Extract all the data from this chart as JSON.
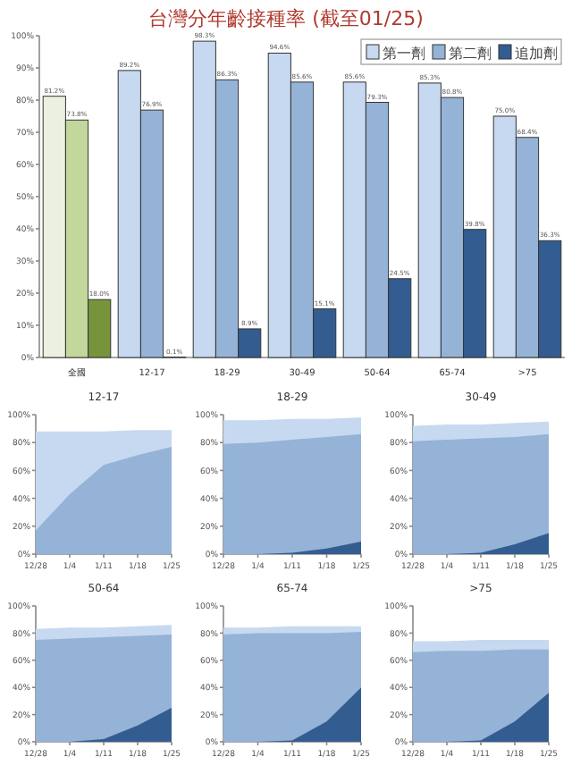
{
  "chart_data": [
    {
      "type": "bar",
      "title": "台灣分年齡接種率 (截至01/25)",
      "categories": [
        "全國",
        "12-17",
        "18-29",
        "30-49",
        "50-64",
        "65-74",
        ">75"
      ],
      "legend": "top right",
      "ylim": [
        0,
        100
      ],
      "yticks": [
        {
          "value": 0,
          "label": "0%"
        },
        {
          "value": 10,
          "label": "10%"
        },
        {
          "value": 20,
          "label": "20%"
        },
        {
          "value": 30,
          "label": "30%"
        },
        {
          "value": 40,
          "label": "40%"
        },
        {
          "value": 50,
          "label": "50%"
        },
        {
          "value": 60,
          "label": "60%"
        },
        {
          "value": 70,
          "label": "70%"
        },
        {
          "value": 80,
          "label": "80%"
        },
        {
          "value": 90,
          "label": "90%"
        },
        {
          "value": 100,
          "label": "100%"
        }
      ],
      "series": [
        {
          "name": "第一劑",
          "color": "#c6d9f0",
          "colors": [
            "#ebf1de",
            "#c6d9f0",
            "#c6d9f0",
            "#c6d9f0",
            "#c6d9f0",
            "#c6d9f0",
            "#c6d9f0"
          ],
          "values": [
            81.2,
            89.2,
            98.3,
            94.6,
            85.6,
            85.3,
            75.0
          ],
          "value_labels": [
            "81.2%",
            "89.2%",
            "98.3%",
            "94.6%",
            "85.6%",
            "85.3%",
            "75.0%"
          ]
        },
        {
          "name": "第二劑",
          "color": "#95b3d7",
          "colors": [
            "#c3d69b",
            "#95b3d7",
            "#95b3d7",
            "#95b3d7",
            "#95b3d7",
            "#95b3d7",
            "#95b3d7"
          ],
          "values": [
            73.8,
            76.9,
            86.3,
            85.6,
            79.3,
            80.8,
            68.4
          ],
          "value_labels": [
            "73.8%",
            "76.9%",
            "86.3%",
            "85.6%",
            "79.3%",
            "80.8%",
            "68.4%"
          ]
        },
        {
          "name": "追加劑",
          "color": "#335d91",
          "colors": [
            "#77933c",
            "#335d91",
            "#335d91",
            "#335d91",
            "#335d91",
            "#335d91",
            "#335d91"
          ],
          "values": [
            18.0,
            0.1,
            8.9,
            15.1,
            24.5,
            39.8,
            36.3
          ],
          "value_labels": [
            "18.0%",
            "0.1%",
            "8.9%",
            "15.1%",
            "24.5%",
            "39.8%",
            "36.3%"
          ]
        }
      ]
    },
    {
      "type": "area",
      "title": "12-17",
      "categories": [
        "12/28",
        "1/4",
        "1/11",
        "1/18",
        "1/25"
      ],
      "ylim": [
        0,
        100
      ],
      "yticks": [
        {
          "value": 0,
          "label": "0%"
        },
        {
          "value": 20,
          "label": "20%"
        },
        {
          "value": 40,
          "label": "40%"
        },
        {
          "value": 60,
          "label": "60%"
        },
        {
          "value": 80,
          "label": "80%"
        },
        {
          "value": 100,
          "label": "100%"
        }
      ],
      "series": [
        {
          "color": "#c6d9f0",
          "values": [
            88,
            88,
            88,
            89,
            89
          ]
        },
        {
          "color": "#95b3d7",
          "values": [
            17,
            43,
            64,
            71,
            77
          ]
        }
      ]
    },
    {
      "type": "area",
      "title": "18-29",
      "categories": [
        "12/28",
        "1/4",
        "1/11",
        "1/18",
        "1/25"
      ],
      "ylim": [
        0,
        100
      ],
      "yticks": [
        {
          "value": 0,
          "label": "0%"
        },
        {
          "value": 20,
          "label": "20%"
        },
        {
          "value": 40,
          "label": "40%"
        },
        {
          "value": 60,
          "label": "60%"
        },
        {
          "value": 80,
          "label": "80%"
        },
        {
          "value": 100,
          "label": "100%"
        }
      ],
      "series": [
        {
          "color": "#c6d9f0",
          "values": [
            96,
            96,
            97,
            97,
            98
          ]
        },
        {
          "color": "#95b3d7",
          "values": [
            79,
            80,
            82,
            84,
            86
          ]
        },
        {
          "color": "#335d91",
          "values": [
            0,
            0,
            1,
            4,
            9
          ]
        }
      ]
    },
    {
      "type": "area",
      "title": "30-49",
      "categories": [
        "12/28",
        "1/4",
        "1/11",
        "1/18",
        "1/25"
      ],
      "ylim": [
        0,
        100
      ],
      "yticks": [
        {
          "value": 0,
          "label": "0%"
        },
        {
          "value": 20,
          "label": "20%"
        },
        {
          "value": 40,
          "label": "40%"
        },
        {
          "value": 60,
          "label": "60%"
        },
        {
          "value": 80,
          "label": "80%"
        },
        {
          "value": 100,
          "label": "100%"
        }
      ],
      "series": [
        {
          "color": "#c6d9f0",
          "values": [
            92,
            93,
            93,
            94,
            95
          ]
        },
        {
          "color": "#95b3d7",
          "values": [
            81,
            82,
            83,
            84,
            86
          ]
        },
        {
          "color": "#335d91",
          "values": [
            0,
            0,
            1,
            7,
            15
          ]
        }
      ]
    },
    {
      "type": "area",
      "title": "50-64",
      "categories": [
        "12/28",
        "1/4",
        "1/11",
        "1/18",
        "1/25"
      ],
      "ylim": [
        0,
        100
      ],
      "yticks": [
        {
          "value": 0,
          "label": "0%"
        },
        {
          "value": 20,
          "label": "20%"
        },
        {
          "value": 40,
          "label": "40%"
        },
        {
          "value": 60,
          "label": "60%"
        },
        {
          "value": 80,
          "label": "80%"
        },
        {
          "value": 100,
          "label": "100%"
        }
      ],
      "series": [
        {
          "color": "#c6d9f0",
          "values": [
            83,
            84,
            84,
            85,
            86
          ]
        },
        {
          "color": "#95b3d7",
          "values": [
            75,
            76,
            77,
            78,
            79
          ]
        },
        {
          "color": "#335d91",
          "values": [
            0,
            0,
            2,
            12,
            25
          ]
        }
      ]
    },
    {
      "type": "area",
      "title": "65-74",
      "categories": [
        "12/28",
        "1/4",
        "1/11",
        "1/18",
        "1/25"
      ],
      "ylim": [
        0,
        100
      ],
      "yticks": [
        {
          "value": 0,
          "label": "0%"
        },
        {
          "value": 20,
          "label": "20%"
        },
        {
          "value": 40,
          "label": "40%"
        },
        {
          "value": 60,
          "label": "60%"
        },
        {
          "value": 80,
          "label": "80%"
        },
        {
          "value": 100,
          "label": "100%"
        }
      ],
      "series": [
        {
          "color": "#c6d9f0",
          "values": [
            84,
            84,
            85,
            85,
            85
          ]
        },
        {
          "color": "#95b3d7",
          "values": [
            79,
            80,
            80,
            80,
            81
          ]
        },
        {
          "color": "#335d91",
          "values": [
            0,
            0,
            1,
            15,
            40
          ]
        }
      ]
    },
    {
      "type": "area",
      "title": ">75",
      "categories": [
        "12/28",
        "1/4",
        "1/11",
        "1/18",
        "1/25"
      ],
      "ylim": [
        0,
        100
      ],
      "yticks": [
        {
          "value": 0,
          "label": "0%"
        },
        {
          "value": 20,
          "label": "20%"
        },
        {
          "value": 40,
          "label": "40%"
        },
        {
          "value": 60,
          "label": "60%"
        },
        {
          "value": 80,
          "label": "80%"
        },
        {
          "value": 100,
          "label": "100%"
        }
      ],
      "series": [
        {
          "color": "#c6d9f0",
          "values": [
            74,
            74,
            75,
            75,
            75
          ]
        },
        {
          "color": "#95b3d7",
          "values": [
            66,
            67,
            67,
            68,
            68
          ]
        },
        {
          "color": "#335d91",
          "values": [
            0,
            0,
            1,
            15,
            36
          ]
        }
      ]
    }
  ]
}
